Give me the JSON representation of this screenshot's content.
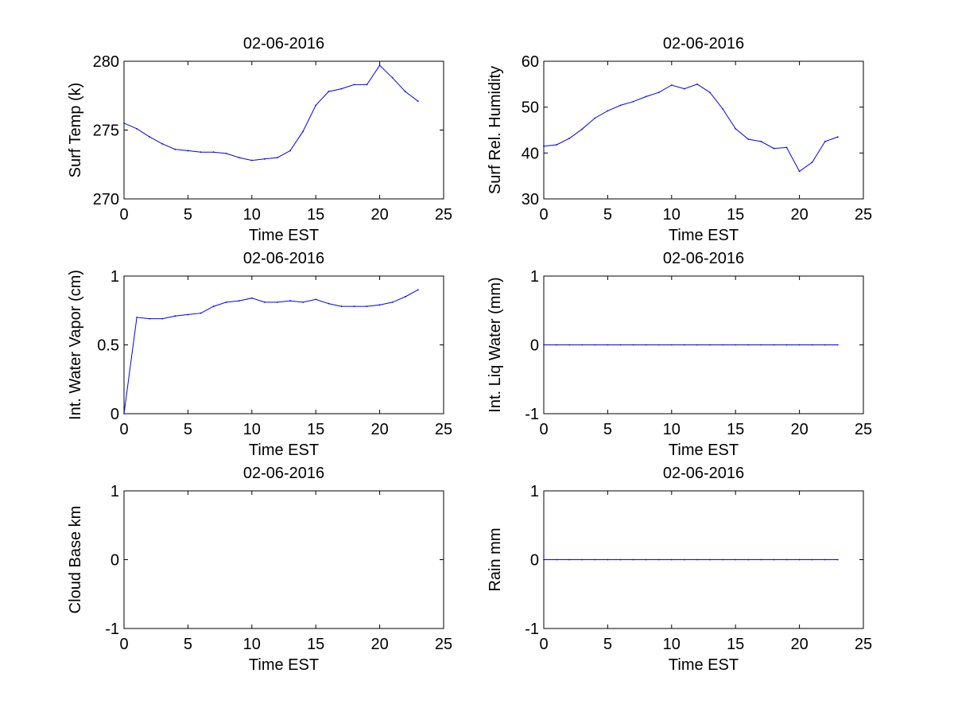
{
  "chart_data": [
    {
      "type": "line",
      "title": "02-06-2016",
      "xlabel": "Time EST",
      "ylabel": "Surf Temp (k)",
      "xlim": [
        0,
        25
      ],
      "ylim": [
        270,
        280
      ],
      "xticks": [
        0,
        5,
        10,
        15,
        20,
        25
      ],
      "yticks": [
        270,
        275,
        280
      ],
      "grid": false,
      "series": [
        {
          "color": "#0000ff",
          "x": [
            0,
            1,
            2,
            3,
            4,
            5,
            6,
            7,
            8,
            9,
            10,
            11,
            12,
            13,
            14,
            15,
            16,
            17,
            18,
            19,
            20,
            21,
            22,
            23
          ],
          "values": [
            275.5,
            275.1,
            274.5,
            274.0,
            273.6,
            273.5,
            273.4,
            273.4,
            273.3,
            273.0,
            272.8,
            272.9,
            273.0,
            273.5,
            274.9,
            276.8,
            277.8,
            278.0,
            278.3,
            278.3,
            279.7,
            278.8,
            277.8,
            277.1
          ]
        }
      ]
    },
    {
      "type": "line",
      "title": "02-06-2016",
      "xlabel": "Time EST",
      "ylabel": "Surf Rel. Humidity",
      "xlim": [
        0,
        25
      ],
      "ylim": [
        30,
        60
      ],
      "xticks": [
        0,
        5,
        10,
        15,
        20,
        25
      ],
      "yticks": [
        30,
        40,
        50,
        60
      ],
      "grid": false,
      "series": [
        {
          "color": "#0000ff",
          "x": [
            0,
            1,
            2,
            3,
            4,
            5,
            6,
            7,
            8,
            9,
            10,
            11,
            12,
            13,
            14,
            15,
            16,
            17,
            18,
            19,
            20,
            21,
            22,
            23
          ],
          "values": [
            41.5,
            41.8,
            43.2,
            45.2,
            47.6,
            49.2,
            50.4,
            51.2,
            52.3,
            53.2,
            54.8,
            54.0,
            55.0,
            53.2,
            49.6,
            45.3,
            43.0,
            42.5,
            41.0,
            41.2,
            36.0,
            38.0,
            42.5,
            43.5
          ]
        }
      ]
    },
    {
      "type": "line",
      "title": "02-06-2016",
      "xlabel": "Time EST",
      "ylabel": "Int. Water Vapor (cm)",
      "xlim": [
        0,
        25
      ],
      "ylim": [
        0,
        1
      ],
      "xticks": [
        0,
        5,
        10,
        15,
        20,
        25
      ],
      "yticks": [
        0,
        0.5,
        1
      ],
      "grid": false,
      "series": [
        {
          "color": "#0000ff",
          "x": [
            0,
            1,
            2,
            3,
            4,
            5,
            6,
            7,
            8,
            9,
            10,
            11,
            12,
            13,
            14,
            15,
            16,
            17,
            18,
            19,
            20,
            21,
            22,
            23
          ],
          "values": [
            0.0,
            0.7,
            0.69,
            0.69,
            0.71,
            0.72,
            0.73,
            0.78,
            0.81,
            0.82,
            0.84,
            0.81,
            0.81,
            0.82,
            0.81,
            0.83,
            0.8,
            0.78,
            0.78,
            0.78,
            0.79,
            0.81,
            0.85,
            0.9
          ]
        }
      ]
    },
    {
      "type": "line",
      "title": "02-06-2016",
      "xlabel": "Time EST",
      "ylabel": "Int. Liq Water (mm)",
      "xlim": [
        0,
        25
      ],
      "ylim": [
        -1,
        1
      ],
      "xticks": [
        0,
        5,
        10,
        15,
        20,
        25
      ],
      "yticks": [
        -1,
        0,
        1
      ],
      "grid": false,
      "series": [
        {
          "color": "#0000ff",
          "x": [
            0,
            1,
            2,
            3,
            4,
            5,
            6,
            7,
            8,
            9,
            10,
            11,
            12,
            13,
            14,
            15,
            16,
            17,
            18,
            19,
            20,
            21,
            22,
            23
          ],
          "values": [
            0,
            0,
            0,
            0,
            0,
            0,
            0,
            0,
            0,
            0,
            0,
            0,
            0,
            0,
            0,
            0,
            0,
            0,
            0,
            0,
            0,
            0,
            0,
            0
          ]
        }
      ]
    },
    {
      "type": "line",
      "title": "02-06-2016",
      "xlabel": "Time EST",
      "ylabel": "Cloud Base km",
      "xlim": [
        0,
        25
      ],
      "ylim": [
        -1,
        1
      ],
      "xticks": [
        0,
        5,
        10,
        15,
        20,
        25
      ],
      "yticks": [
        -1,
        0,
        1
      ],
      "grid": false,
      "series": []
    },
    {
      "type": "line",
      "title": "02-06-2016",
      "xlabel": "Time EST",
      "ylabel": "Rain mm",
      "xlim": [
        0,
        25
      ],
      "ylim": [
        -1,
        1
      ],
      "xticks": [
        0,
        5,
        10,
        15,
        20,
        25
      ],
      "yticks": [
        -1,
        0,
        1
      ],
      "grid": false,
      "series": [
        {
          "color": "#0000ff",
          "x": [
            0,
            1,
            2,
            3,
            4,
            5,
            6,
            7,
            8,
            9,
            10,
            11,
            12,
            13,
            14,
            15,
            16,
            17,
            18,
            19,
            20,
            21,
            22,
            23
          ],
          "values": [
            0,
            0,
            0,
            0,
            0,
            0,
            0,
            0,
            0,
            0,
            0,
            0,
            0,
            0,
            0,
            0,
            0,
            0,
            0,
            0,
            0,
            0,
            0,
            0
          ]
        }
      ]
    }
  ]
}
